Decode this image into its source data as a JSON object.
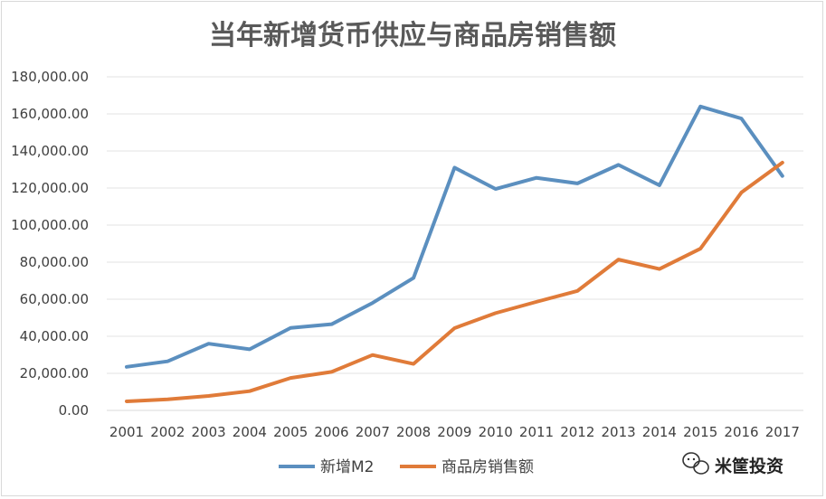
{
  "chart_data": {
    "type": "line",
    "title": "当年新增货币供应与商品房销售额",
    "categories": [
      "2001",
      "2002",
      "2003",
      "2004",
      "2005",
      "2006",
      "2007",
      "2008",
      "2009",
      "2010",
      "2011",
      "2012",
      "2013",
      "2014",
      "2015",
      "2016",
      "2017"
    ],
    "series": [
      {
        "name": "新增M2",
        "color": "#5b8fbf",
        "values": [
          23500,
          26500,
          36000,
          33000,
          44500,
          46500,
          58000,
          71500,
          131000,
          119500,
          125500,
          122500,
          132500,
          121500,
          164000,
          157500,
          126500
        ]
      },
      {
        "name": "商品房销售额",
        "color": "#e07b39",
        "values": [
          4900,
          6000,
          7800,
          10400,
          17500,
          20800,
          29900,
          25100,
          44400,
          52500,
          58600,
          64500,
          81400,
          76300,
          87300,
          117600,
          133700
        ]
      }
    ],
    "y_ticks": [
      "0.00",
      "20,000.00",
      "40,000.00",
      "60,000.00",
      "80,000.00",
      "100,000.00",
      "120,000.00",
      "140,000.00",
      "160,000.00",
      "180,000.00"
    ],
    "ylim": [
      0,
      180000
    ],
    "grid": true,
    "legend_position": "bottom"
  },
  "watermark": {
    "text": "米筐投资",
    "icon": "wechat-icon"
  }
}
